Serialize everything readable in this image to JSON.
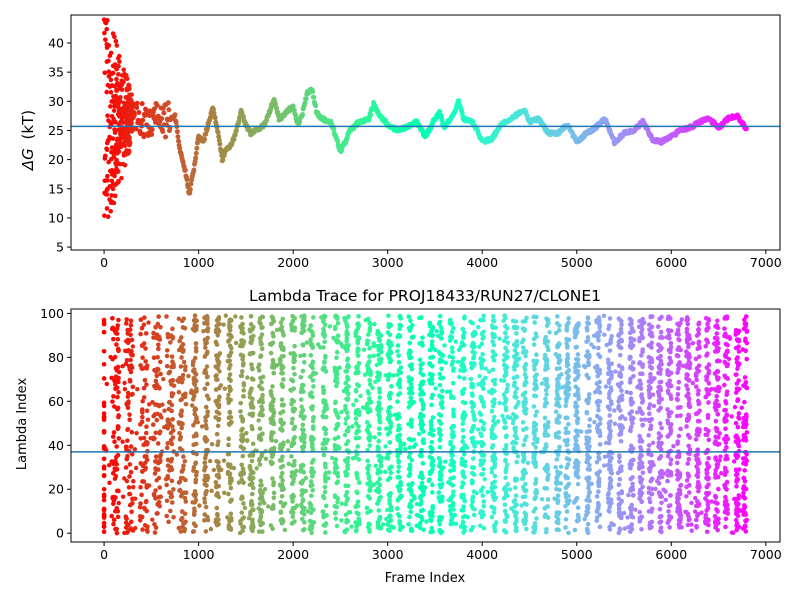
{
  "chart_data": [
    {
      "type": "scatter",
      "title": "",
      "xlabel": "",
      "ylabel": "ΔG (kT)",
      "ylabel_symbol": "ΔG",
      "ylabel_unit": "(kT)",
      "xlim": [
        -350,
        7150
      ],
      "ylim": [
        4.5,
        44.8
      ],
      "xticks": [
        0,
        1000,
        2000,
        3000,
        4000,
        5000,
        6000,
        7000
      ],
      "yticks": [
        5,
        10,
        15,
        20,
        25,
        30,
        35,
        40
      ],
      "hline": 25.7,
      "hline_color": "#1f77b4",
      "colormap": "rainbow",
      "grid": false,
      "legend": "none",
      "trace_keypoints": [
        [
          150,
          27.0
        ],
        [
          250,
          27.5
        ],
        [
          350,
          27.0
        ],
        [
          450,
          26.5
        ],
        [
          550,
          26.8
        ],
        [
          650,
          26.5
        ],
        [
          750,
          27.5
        ],
        [
          800,
          22.0
        ],
        [
          860,
          18.0
        ],
        [
          900,
          14.0
        ],
        [
          950,
          18.5
        ],
        [
          1000,
          24.0
        ],
        [
          1050,
          23.0
        ],
        [
          1100,
          26.0
        ],
        [
          1150,
          29.0
        ],
        [
          1200,
          25.0
        ],
        [
          1250,
          20.0
        ],
        [
          1300,
          22.0
        ],
        [
          1350,
          22.5
        ],
        [
          1400,
          25.0
        ],
        [
          1450,
          28.5
        ],
        [
          1500,
          26.0
        ],
        [
          1550,
          24.5
        ],
        [
          1600,
          25.0
        ],
        [
          1700,
          26.0
        ],
        [
          1800,
          30.5
        ],
        [
          1850,
          27.0
        ],
        [
          1900,
          27.5
        ],
        [
          1950,
          28.5
        ],
        [
          2000,
          29.0
        ],
        [
          2050,
          26.0
        ],
        [
          2100,
          28.0
        ],
        [
          2150,
          31.5
        ],
        [
          2200,
          32.0
        ],
        [
          2250,
          28.0
        ],
        [
          2300,
          27.0
        ],
        [
          2400,
          26.5
        ],
        [
          2500,
          21.5
        ],
        [
          2550,
          23.0
        ],
        [
          2600,
          25.0
        ],
        [
          2700,
          26.5
        ],
        [
          2800,
          27.0
        ],
        [
          2850,
          29.5
        ],
        [
          2900,
          28.0
        ],
        [
          3000,
          26.0
        ],
        [
          3100,
          25.0
        ],
        [
          3200,
          25.5
        ],
        [
          3300,
          26.5
        ],
        [
          3400,
          24.0
        ],
        [
          3500,
          27.0
        ],
        [
          3550,
          28.0
        ],
        [
          3600,
          25.5
        ],
        [
          3700,
          28.0
        ],
        [
          3750,
          30.0
        ],
        [
          3800,
          27.0
        ],
        [
          3900,
          26.5
        ],
        [
          4000,
          23.0
        ],
        [
          4100,
          23.5
        ],
        [
          4200,
          26.0
        ],
        [
          4300,
          27.0
        ],
        [
          4400,
          28.0
        ],
        [
          4450,
          28.5
        ],
        [
          4500,
          26.5
        ],
        [
          4600,
          27.0
        ],
        [
          4700,
          24.5
        ],
        [
          4800,
          24.5
        ],
        [
          4900,
          26.0
        ],
        [
          5000,
          23.0
        ],
        [
          5100,
          24.5
        ],
        [
          5200,
          25.5
        ],
        [
          5300,
          27.0
        ],
        [
          5400,
          23.0
        ],
        [
          5500,
          24.5
        ],
        [
          5600,
          25.0
        ],
        [
          5700,
          26.5
        ],
        [
          5800,
          23.5
        ],
        [
          5900,
          23.0
        ],
        [
          6000,
          24.0
        ],
        [
          6100,
          25.0
        ],
        [
          6200,
          25.5
        ],
        [
          6300,
          26.5
        ],
        [
          6400,
          27.0
        ],
        [
          6500,
          25.5
        ],
        [
          6600,
          27.0
        ],
        [
          6700,
          27.5
        ],
        [
          6800,
          25.0
        ]
      ],
      "early_scatter_x_range": [
        0,
        300
      ],
      "early_scatter_y_range": [
        8,
        44
      ]
    },
    {
      "type": "scatter",
      "title": "Lambda Trace for PROJ18433/RUN27/CLONE1",
      "xlabel": "Frame Index",
      "ylabel": "Lambda Index",
      "xlim": [
        -350,
        7150
      ],
      "ylim": [
        -4,
        102
      ],
      "xticks": [
        0,
        1000,
        2000,
        3000,
        4000,
        5000,
        6000,
        7000
      ],
      "yticks": [
        0,
        20,
        40,
        60,
        80,
        100
      ],
      "hline": 37,
      "hline_color": "#1f77b4",
      "colormap": "rainbow",
      "grid": false,
      "legend": "none",
      "x_range": [
        0,
        6800
      ],
      "y_range": [
        0,
        99
      ],
      "sweep_centers": [
        120,
        270,
        420,
        560,
        700,
        830,
        960,
        1080,
        1200,
        1330,
        1460,
        1560,
        1660,
        1780,
        1880,
        2000,
        2100,
        2200,
        2330,
        2460,
        2570,
        2680,
        2800,
        2910,
        3020,
        3120,
        3240,
        3360,
        3460,
        3560,
        3680,
        3800,
        3900,
        4000,
        4120,
        4250,
        4350,
        4450,
        4560,
        4680,
        4800,
        4900,
        5000,
        5120,
        5230,
        5350,
        5460,
        5580,
        5680,
        5780,
        5880,
        5980,
        6080,
        6180,
        6280,
        6380,
        6480,
        6580,
        6700,
        6780
      ]
    }
  ]
}
